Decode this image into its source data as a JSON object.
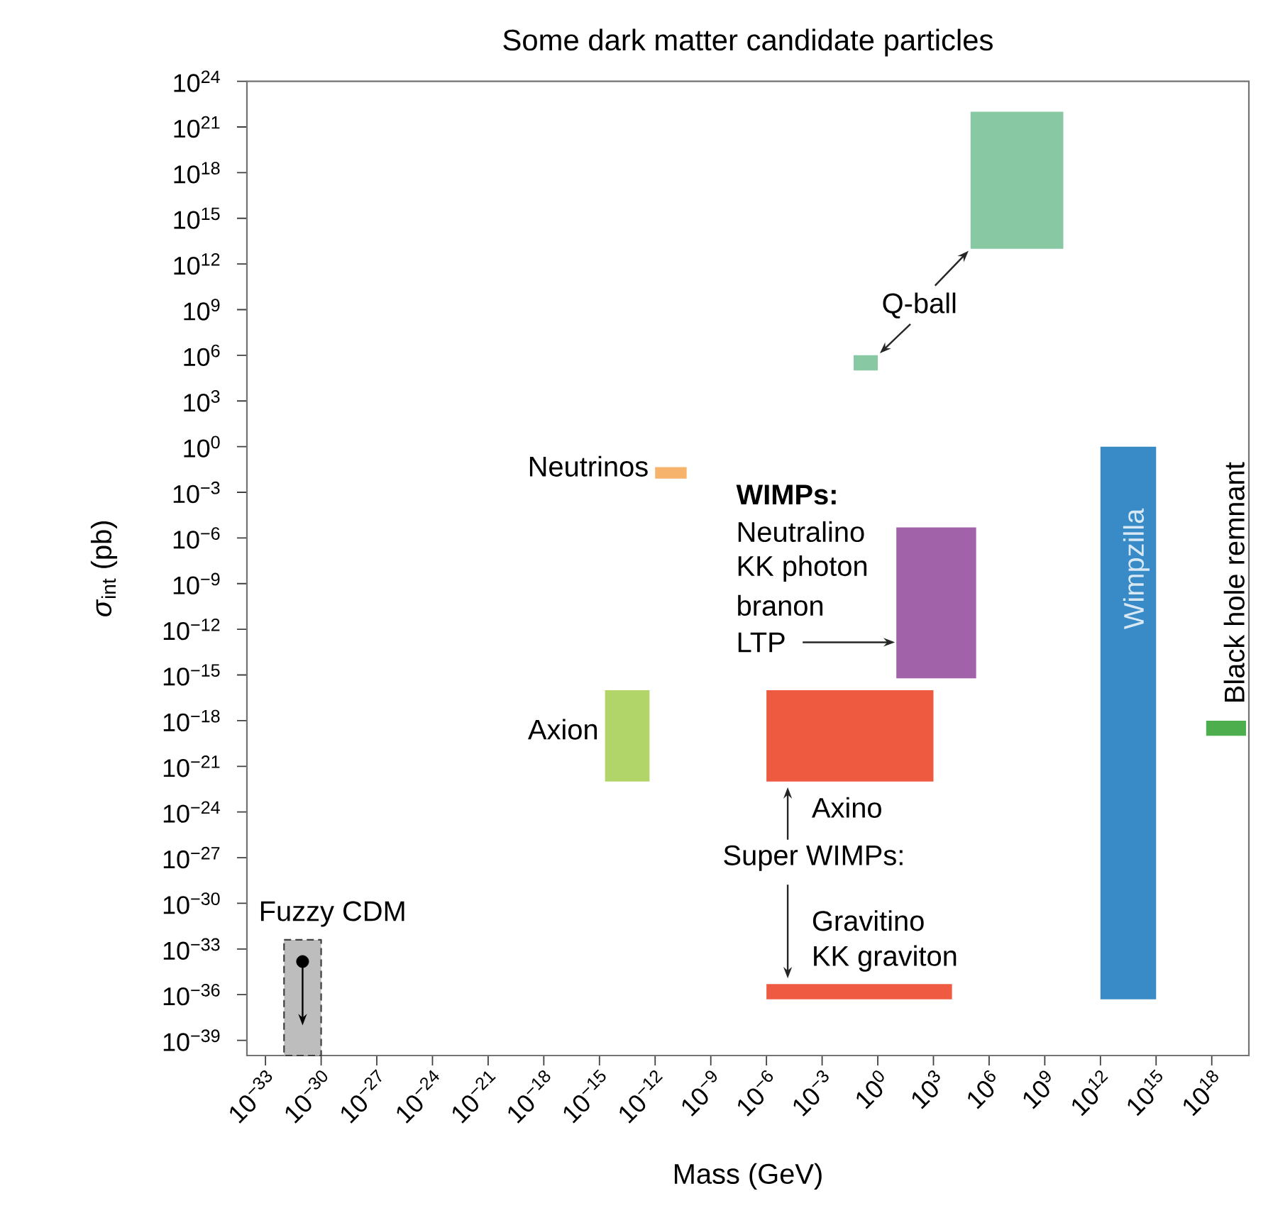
{
  "chart_data": {
    "type": "line",
    "title": "Some dark matter candidate particles",
    "xlabel": "Mass (GeV)",
    "ylabel": "*σ*$_{int}$ (pb)",
    "log": "xy",
    "xlim": [
      1e-34,
      1e+20
    ],
    "ylim": [
      1e-40,
      1e+24
    ],
    "xticks": [
      {
        "value": 1e-33,
        "label": "10$^{−33}$"
      },
      {
        "value": 1e-30,
        "label": "10$^{−30}$"
      },
      {
        "value": 1e-27,
        "label": "10$^{−27}$"
      },
      {
        "value": 1e-24,
        "label": "10$^{−24}$"
      },
      {
        "value": 1e-21,
        "label": "10$^{−21}$"
      },
      {
        "value": 1e-18,
        "label": "10$^{−18}$"
      },
      {
        "value": 1e-15,
        "label": "10$^{−15}$"
      },
      {
        "value": 1e-12,
        "label": "10$^{−12}$"
      },
      {
        "value": 1e-09,
        "label": "10$^{−9}$"
      },
      {
        "value": 1e-06,
        "label": "10$^{−6}$"
      },
      {
        "value": 0.001,
        "label": "10$^{−3}$"
      },
      {
        "value": 1,
        "label": "10$^{0}$"
      },
      {
        "value": 1000.0,
        "label": "10$^{3}$"
      },
      {
        "value": 1000000.0,
        "label": "10$^{6}$"
      },
      {
        "value": 1000000000.0,
        "label": "10$^{9}$"
      },
      {
        "value": 1000000000000.0,
        "label": "10$^{12}$"
      },
      {
        "value": 1000000000000000.0,
        "label": "10$^{15}$"
      },
      {
        "value": 1e+18,
        "label": "10$^{18}$"
      }
    ],
    "yticks": [
      {
        "value": 1e-39,
        "label": "10$^{−39}$"
      },
      {
        "value": 1e-36,
        "label": "10$^{−36}$"
      },
      {
        "value": 1e-33,
        "label": "10$^{−33}$"
      },
      {
        "value": 1e-30,
        "label": "10$^{−30}$"
      },
      {
        "value": 1e-27,
        "label": "10$^{−27}$"
      },
      {
        "value": 1e-24,
        "label": "10$^{−24}$"
      },
      {
        "value": 1e-21,
        "label": "10$^{−21}$"
      },
      {
        "value": 1e-18,
        "label": "10$^{−18}$"
      },
      {
        "value": 1e-15,
        "label": "10$^{−15}$"
      },
      {
        "value": 1e-12,
        "label": "10$^{−12}$"
      },
      {
        "value": 1e-09,
        "label": "10$^{−9}$"
      },
      {
        "value": 1e-06,
        "label": "10$^{−6}$"
      },
      {
        "value": 0.001,
        "label": "10$^{−3}$"
      },
      {
        "value": 1,
        "label": "10$^{0}$"
      },
      {
        "value": 1000.0,
        "label": "10$^{3}$"
      },
      {
        "value": 1000000.0,
        "label": "10$^{6}$"
      },
      {
        "value": 1000000000.0,
        "label": "10$^{9}$"
      },
      {
        "value": 1000000000000.0,
        "label": "10$^{12}$"
      },
      {
        "value": 1000000000000000.0,
        "label": "10$^{15}$"
      },
      {
        "value": 1e+18,
        "label": "10$^{18}$"
      },
      {
        "value": 1e+21,
        "label": "10$^{21}$"
      },
      {
        "value": 1e+24,
        "label": "10$^{24}$"
      }
    ],
    "series": [
      {
        "color": "#bdbdbd",
        "line_style": "dashed",
        "x": [
          1e-32,
          1e-30
        ],
        "values": [
          null,
          null
        ],
        "lower": [
          1e-40,
          1e-40
        ],
        "upper": [
          4e-33,
          4e-33
        ]
      },
      {
        "type": "scatter",
        "color": "#000000",
        "marker": "circle",
        "x": [
          1e-31
        ],
        "values": [
          1.5e-34
        ]
      },
      {
        "color": "#b2d56a",
        "x": [
          2e-15,
          5e-13
        ],
        "values": [
          null,
          null
        ],
        "lower": [
          1e-22,
          1e-22
        ],
        "upper": [
          1e-16,
          1e-16
        ]
      },
      {
        "color": "#f5b36b",
        "x": [
          1e-12,
          5e-11
        ],
        "values": [
          null,
          null
        ],
        "lower": [
          0.008,
          0.008
        ],
        "upper": [
          0.045,
          0.045
        ]
      },
      {
        "color": "#88c9a4",
        "x": [
          0.05,
          1
        ],
        "values": [
          null,
          null
        ],
        "lower": [
          100000.0,
          100000.0
        ],
        "upper": [
          1000000.0,
          1000000.0
        ]
      },
      {
        "color": "#88c9a4",
        "x": [
          100000.0,
          10000000000.0
        ],
        "values": [
          null,
          null
        ],
        "lower": [
          10000000000000.0,
          10000000000000.0
        ],
        "upper": [
          1e+22,
          1e+22
        ]
      },
      {
        "color": "#a262a9",
        "x": [
          10,
          200000.0
        ],
        "values": [
          null,
          null
        ],
        "lower": [
          6e-16,
          6e-16
        ],
        "upper": [
          5e-06,
          5e-06
        ]
      },
      {
        "color": "#ee5a40",
        "x": [
          1e-06,
          1000.0
        ],
        "values": [
          null,
          null
        ],
        "lower": [
          1e-22,
          1e-22
        ],
        "upper": [
          1e-16,
          1e-16
        ]
      },
      {
        "color": "#ef5b42",
        "x": [
          1e-06,
          10000.0
        ],
        "values": [
          null,
          null
        ],
        "lower": [
          5e-37,
          5e-37
        ],
        "upper": [
          5e-36,
          5e-36
        ]
      },
      {
        "color": "#388bc6",
        "x": [
          1000000000000.0,
          1000000000000000.0
        ],
        "values": [
          null,
          null
        ],
        "lower": [
          5e-37,
          5e-37
        ],
        "upper": [
          1,
          1
        ]
      },
      {
        "color": "#4cae4c",
        "x": [
          5e+17,
          7e+19
        ],
        "values": [
          null,
          null
        ],
        "lower": [
          1e-19,
          1e-19
        ],
        "upper": [
          1e-18,
          1e-18
        ]
      }
    ],
    "annotations": [
      {
        "text": "Q-ball",
        "x": 100000.0,
        "y": 10000000000000.0
      },
      "WIMPs:",
      "Neutralino",
      "KK photon",
      "branon",
      {
        "text": "LTP",
        "x": 10,
        "y": 1.4e-13
      },
      {
        "text": "Axino",
        "x": 1.4e-05,
        "y": 1e-22
      },
      "Super WIMPs:",
      {
        "text": "Gravitino",
        "x": 1.4e-05,
        "y": 5e-36
      },
      {
        "text": "KK graviton",
        "x": 1.4e-05,
        "y": 5e-36
      },
      "Fuzzy CDM",
      "Axion",
      "Neutrinos",
      "Wimpzilla",
      "Black hole remnant"
    ]
  }
}
